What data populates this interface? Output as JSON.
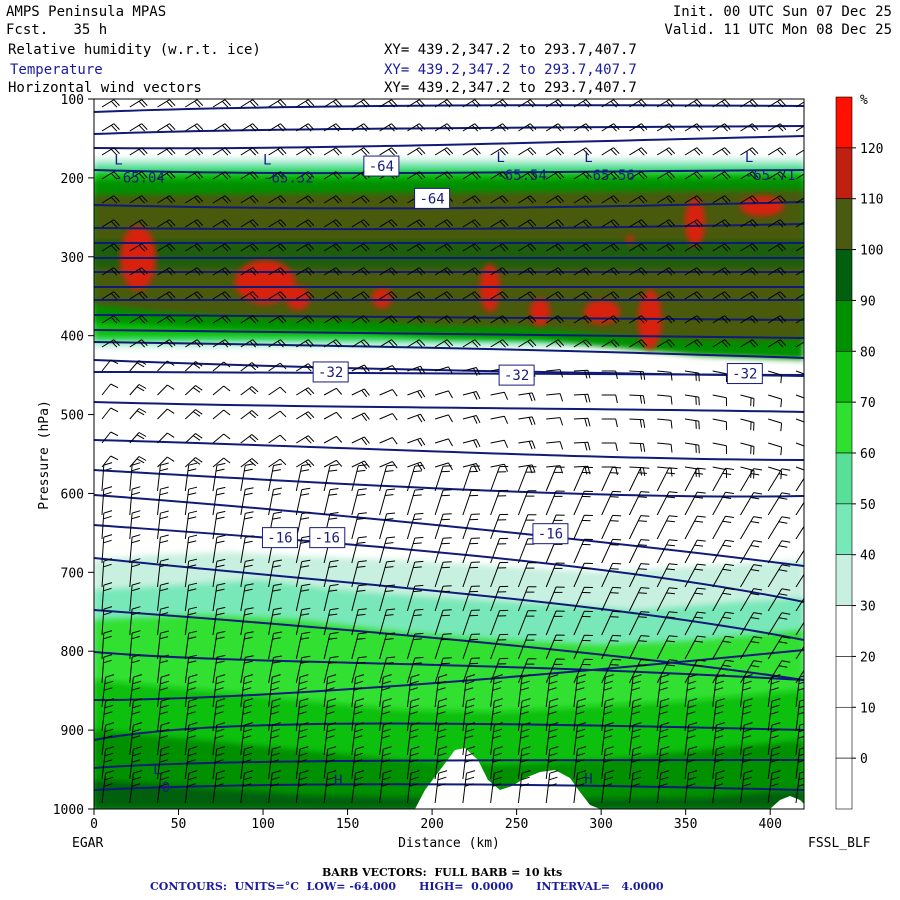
{
  "header": {
    "model": "AMPS Peninsula MPAS",
    "fcst_label": "Fcst.",
    "fcst_value": "35 h",
    "init": "Init. 00 UTC Sun 07 Dec 25",
    "valid": "Valid. 11 UTC Mon 08 Dec 25",
    "fields": [
      {
        "name": "Relative humidity (w.r.t. ice)",
        "xy": "XY= 439.2,347.2 to 293.7,407.7"
      },
      {
        "name": "Temperature",
        "xy": "XY= 439.2,347.2 to 293.7,407.7"
      },
      {
        "name": "Horizontal wind vectors",
        "xy": "XY= 439.2,347.2 to 293.7,407.7"
      }
    ]
  },
  "footer": {
    "barb": "BARB VECTORS:  FULL BARB = 10 kts",
    "contours": "CONTOURS:  UNITS=°C  LOW= -64.000      HIGH=  0.0000      INTERVAL=   4.0000"
  },
  "colors": {
    "temp_contour": "#101a78",
    "rh_scale": [
      "#ffffff",
      "#ffffff",
      "#ffffff",
      "#ffffff",
      "#c8f0e0",
      "#78e8b8",
      "#58e098",
      "#30e030",
      "#10c010",
      "#009000",
      "#006010",
      "#4a5a10",
      "#c02010",
      "#ff1000"
    ]
  },
  "chart_data": {
    "type": "heatmap",
    "xlabel": "Distance (km)",
    "ylabel": "Pressure (hPa)",
    "x_ticks": [
      0,
      50,
      100,
      150,
      200,
      250,
      300,
      350,
      400
    ],
    "x_range": [
      0,
      420
    ],
    "y_ticks": [
      100,
      200,
      300,
      400,
      500,
      600,
      700,
      800,
      900,
      1000
    ],
    "y_range": [
      100,
      1000
    ],
    "left_endpoint": "EGAR",
    "right_endpoint": "FSSL_BLF",
    "colorbar": {
      "unit": "%",
      "labels": [
        120,
        110,
        100,
        90,
        80,
        70,
        60,
        50,
        40,
        30,
        20,
        10,
        0
      ]
    },
    "contour_labels": [
      {
        "text": "-64",
        "x": 170,
        "p": 185
      },
      {
        "text": "-64",
        "x": 200,
        "p": 226
      },
      {
        "text": "-32",
        "x": 140,
        "p": 446
      },
      {
        "text": "-32",
        "x": 250,
        "p": 450
      },
      {
        "text": "-32",
        "x": 385,
        "p": 448
      },
      {
        "text": "-16",
        "x": 110,
        "p": 656
      },
      {
        "text": "-16",
        "x": 138,
        "p": 656
      },
      {
        "text": "-16",
        "x": 270,
        "p": 651
      }
    ],
    "extrema": [
      {
        "type": "L",
        "x": 12,
        "p": 193,
        "value": "-65.04"
      },
      {
        "type": "L",
        "x": 100,
        "p": 193,
        "value": "-65.32"
      },
      {
        "type": "L",
        "x": 238,
        "p": 190,
        "value": "-65.54"
      },
      {
        "type": "L",
        "x": 290,
        "p": 190,
        "value": "-65.56"
      },
      {
        "type": "L",
        "x": 385,
        "p": 190,
        "value": "-65.71"
      },
      {
        "type": "L",
        "x": 35,
        "p": 966,
        "value": "-0"
      },
      {
        "type": "H",
        "x": 142,
        "p": 980,
        "value": ""
      },
      {
        "type": "H",
        "x": 290,
        "p": 978,
        "value": ""
      }
    ]
  }
}
